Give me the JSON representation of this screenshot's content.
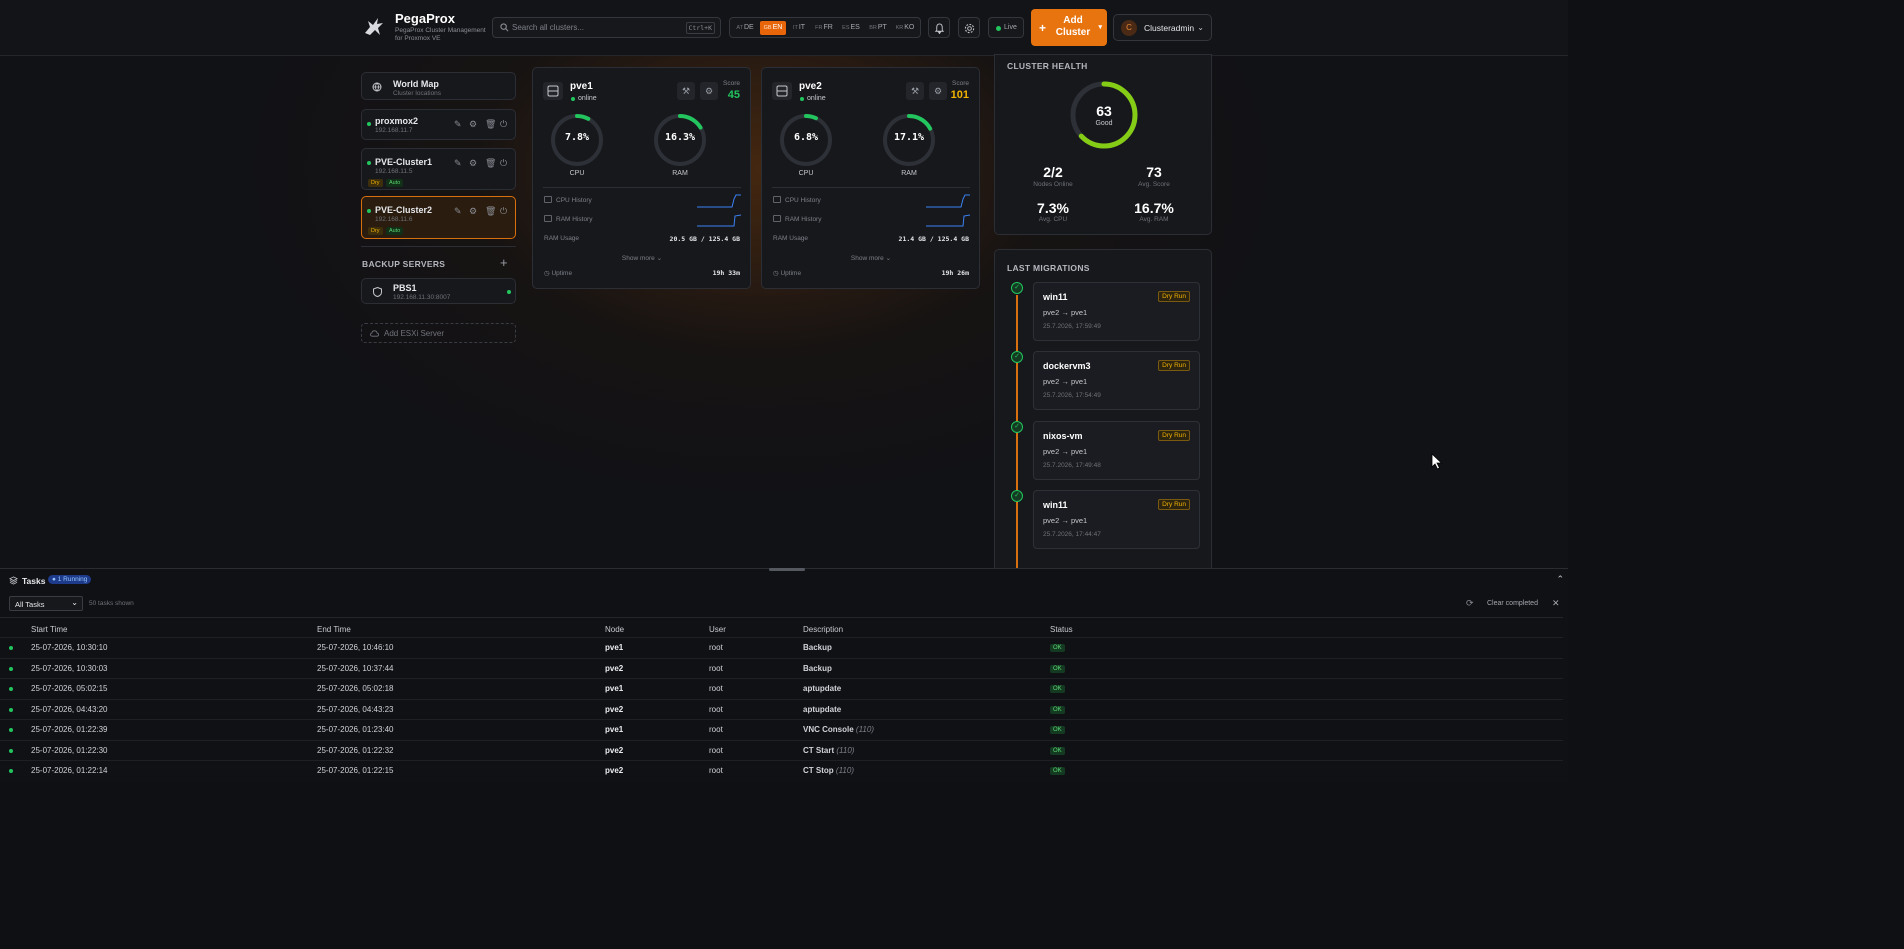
{
  "header": {
    "brand": "PegaProx",
    "brand_sub": "PegaProx Cluster Management for Proxmox VE",
    "search_placeholder": "Search all clusters...",
    "search_shortcut": "Ctrl+K",
    "languages": [
      {
        "flag": "AT",
        "code": "DE"
      },
      {
        "flag": "GB",
        "code": "EN",
        "active": true
      },
      {
        "flag": "IT",
        "code": "IT"
      },
      {
        "flag": "FR",
        "code": "FR"
      },
      {
        "flag": "ES",
        "code": "ES"
      },
      {
        "flag": "BR",
        "code": "PT"
      },
      {
        "flag": "KR",
        "code": "KO"
      }
    ],
    "live_label": "Live",
    "add_cluster_label": "Add Cluster",
    "user_initial": "C",
    "user_name": "Clusteradmin"
  },
  "sidebar": {
    "world_map": {
      "title": "World Map",
      "subtitle": "Cluster locations"
    },
    "clusters": [
      {
        "name": "proxmox2",
        "ip": "192.168.11.7",
        "tags": []
      },
      {
        "name": "PVE-Cluster1",
        "ip": "192.168.11.5",
        "tags": [
          "Dry",
          "Auto"
        ]
      },
      {
        "name": "PVE-Cluster2",
        "ip": "192.168.11.6",
        "tags": [
          "Dry",
          "Auto"
        ],
        "selected": true
      }
    ],
    "backup_title": "BACKUP SERVERS",
    "backup_add": "+",
    "backup_servers": [
      {
        "name": "PBS1",
        "address": "192.168.11.30:8007"
      }
    ],
    "add_esxi_label": "Add ESXi Server"
  },
  "nodes": [
    {
      "name": "pve1",
      "status": "online",
      "score_label": "Score",
      "score": "45",
      "score_color": "#22c55e",
      "cpu": "7.8%",
      "cpu_pct": 7.8,
      "ram": "16.3%",
      "ram_pct": 16.3,
      "cpu_label": "CPU",
      "ram_label": "RAM",
      "cpu_history_label": "CPU History",
      "ram_history_label": "RAM History",
      "ram_usage_label": "RAM Usage",
      "ram_usage": "20.5 GB / 125.4 GB",
      "show_more": "Show more",
      "uptime_label": "Uptime",
      "uptime": "19h 33m"
    },
    {
      "name": "pve2",
      "status": "online",
      "score_label": "Score",
      "score": "101",
      "score_color": "#f2b200",
      "cpu": "6.8%",
      "cpu_pct": 6.8,
      "ram": "17.1%",
      "ram_pct": 17.1,
      "cpu_label": "CPU",
      "ram_label": "RAM",
      "cpu_history_label": "CPU History",
      "ram_history_label": "RAM History",
      "ram_usage_label": "RAM Usage",
      "ram_usage": "21.4 GB / 125.4 GB",
      "show_more": "Show more",
      "uptime_label": "Uptime",
      "uptime": "19h 26m"
    }
  ],
  "health": {
    "title": "CLUSTER HEALTH",
    "score": "63",
    "score_pct": 63,
    "score_label": "Good",
    "stats": [
      {
        "value": "2/2",
        "label": "Nodes Online"
      },
      {
        "value": "73",
        "label": "Avg. Score"
      },
      {
        "value": "7.3%",
        "label": "Avg. CPU"
      },
      {
        "value": "16.7%",
        "label": "Avg. RAM"
      }
    ]
  },
  "migrations": {
    "title": "LAST MIGRATIONS",
    "items": [
      {
        "vm": "win11",
        "badge": "Dry Run",
        "from": "pve2",
        "to": "pve1",
        "time": "25.7.2026, 17:59:49"
      },
      {
        "vm": "dockervm3",
        "badge": "Dry Run",
        "from": "pve2",
        "to": "pve1",
        "time": "25.7.2026, 17:54:49"
      },
      {
        "vm": "nixos-vm",
        "badge": "Dry Run",
        "from": "pve2",
        "to": "pve1",
        "time": "25.7.2026, 17:49:48"
      },
      {
        "vm": "win11",
        "badge": "Dry Run",
        "from": "pve2",
        "to": "pve1",
        "time": "25.7.2026, 17:44:47"
      }
    ]
  },
  "tasks": {
    "title": "Tasks",
    "running_badge": "1 Running",
    "filter": "All Tasks",
    "count_label": "50 tasks shown",
    "clear_label": "Clear completed",
    "columns": [
      "Start Time",
      "End Time",
      "Node",
      "User",
      "Description",
      "Status"
    ],
    "rows": [
      {
        "start": "25-07-2026, 10:30:10",
        "end": "25-07-2026, 10:46:10",
        "node": "pve1",
        "user": "root",
        "desc": "Backup",
        "extra": "",
        "status": "OK"
      },
      {
        "start": "25-07-2026, 10:30:03",
        "end": "25-07-2026, 10:37:44",
        "node": "pve2",
        "user": "root",
        "desc": "Backup",
        "extra": "",
        "status": "OK"
      },
      {
        "start": "25-07-2026, 05:02:15",
        "end": "25-07-2026, 05:02:18",
        "node": "pve1",
        "user": "root",
        "desc": "aptupdate",
        "extra": "",
        "status": "OK"
      },
      {
        "start": "25-07-2026, 04:43:20",
        "end": "25-07-2026, 04:43:23",
        "node": "pve2",
        "user": "root",
        "desc": "aptupdate",
        "extra": "",
        "status": "OK"
      },
      {
        "start": "25-07-2026, 01:22:39",
        "end": "25-07-2026, 01:23:40",
        "node": "pve1",
        "user": "root",
        "desc": "VNC Console",
        "extra": "(110)",
        "status": "OK"
      },
      {
        "start": "25-07-2026, 01:22:30",
        "end": "25-07-2026, 01:22:32",
        "node": "pve2",
        "user": "root",
        "desc": "CT Start",
        "extra": "(110)",
        "status": "OK"
      },
      {
        "start": "25-07-2026, 01:22:14",
        "end": "25-07-2026, 01:22:15",
        "node": "pve2",
        "user": "root",
        "desc": "CT Stop",
        "extra": "(110)",
        "status": "OK"
      }
    ]
  },
  "colors": {
    "accent": "#e8740f",
    "ok": "#22c55e",
    "warning": "#f2b200"
  }
}
